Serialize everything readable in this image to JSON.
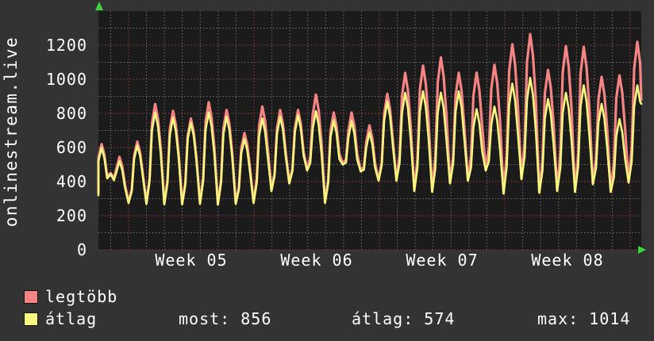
{
  "colors": {
    "background": "#333333",
    "plot_background": "#1b1b1b",
    "grid_minor": "#6e6e6e",
    "grid_major": "#a03b3b",
    "axis_arrow": "#3bd43b",
    "text": "#ffffff",
    "series_max": "#f58585",
    "series_avg": "#f7f77e"
  },
  "legend": [
    {
      "label": "legtöbb",
      "color": "#f58585"
    },
    {
      "label": "átlag",
      "color": "#f7f77e"
    }
  ],
  "stats": [
    {
      "label": "most",
      "value": 856,
      "text": "most: 856"
    },
    {
      "label": "átlag",
      "value": 574,
      "text": "átlag: 574"
    },
    {
      "label": "max",
      "value": 1014,
      "text": "max: 1014"
    }
  ],
  "chart_data": {
    "type": "line",
    "title": "onlinestream.live",
    "y_axis_title": "onlinestream.live",
    "xlabel": "",
    "ylabel": "onlinestream.live",
    "x_axis": {
      "tick_labels": [
        "Week 05",
        "Week 06",
        "Week 07",
        "Week 08"
      ],
      "minor_grid": "1 day",
      "major_grid": "1 week",
      "days_shown": 31
    },
    "y_axis": {
      "ticks": [
        0,
        200,
        400,
        600,
        800,
        1000,
        1200
      ],
      "range": [
        0,
        1400
      ],
      "minor_step": 100
    },
    "grid": true,
    "legend_position": "bottom-left",
    "series": [
      {
        "name": "legtöbb",
        "color": "#f58585",
        "start_value": 335,
        "end_value": 880,
        "daily_peaks": [
          620,
          545,
          635,
          855,
          815,
          770,
          865,
          820,
          685,
          840,
          820,
          820,
          910,
          805,
          805,
          730,
          915,
          1037,
          1080,
          1128,
          1038,
          1039,
          1085,
          1205,
          1265,
          1055,
          1195,
          1190,
          1014,
          1023,
          1220
        ],
        "daily_troughs": [
          450,
          280,
          275,
          272,
          272,
          275,
          270,
          275,
          280,
          350,
          395,
          470,
          280,
          505,
          465,
          410,
          410,
          350,
          345,
          395,
          410,
          470,
          335,
          420,
          340,
          350,
          345,
          390,
          345,
          400
        ]
      },
      {
        "name": "átlag",
        "color": "#f7f77e",
        "start_value": 320,
        "end_value": 856,
        "daily_peaks": [
          598,
          520,
          612,
          806,
          775,
          746,
          806,
          781,
          651,
          770,
          781,
          790,
          814,
          760,
          756,
          690,
          870,
          921,
          930,
          922,
          930,
          825,
          840,
          975,
          1009,
          884,
          921,
          965,
          856,
          767,
          965
        ],
        "daily_troughs": [
          444,
          274,
          269,
          266,
          266,
          269,
          264,
          269,
          274,
          344,
          389,
          464,
          274,
          499,
          459,
          404,
          404,
          344,
          339,
          389,
          404,
          464,
          329,
          414,
          334,
          344,
          339,
          384,
          339,
          394
        ]
      }
    ],
    "summary": {
      "most": 856,
      "atlag": 574,
      "max": 1014
    }
  }
}
